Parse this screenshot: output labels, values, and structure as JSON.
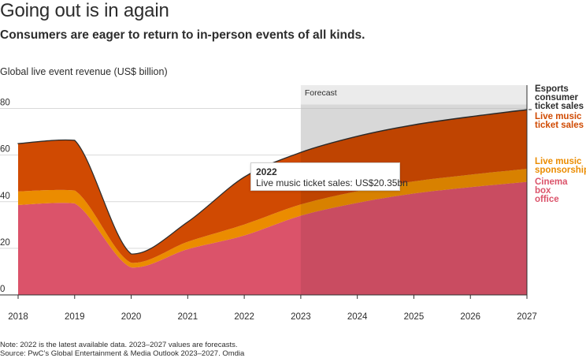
{
  "header": {
    "title": "Going out is in again",
    "subtitle": "Consumers are eager to return to in-person events of all kinds."
  },
  "footer": {
    "note": "Note: 2022 is the latest available data. 2023–2027 values are forecasts.",
    "source": "Source: PwC’s Global Entertainment & Media Outlook 2023–2027. Omdia"
  },
  "tooltip": {
    "year": "2022",
    "text": "Live music ticket sales: US$20.35bn"
  },
  "forecast_label": "Forecast",
  "legend": [
    {
      "lines": [
        "Esports",
        "consumer",
        "ticket sales"
      ],
      "color": "#2d2d2d"
    },
    {
      "lines": [
        "Live music",
        "ticket sales"
      ],
      "color": "#d04a02"
    },
    {
      "lines": [
        "Live music",
        "sponsorship"
      ],
      "color": "#eb8c00"
    },
    {
      "lines": [
        "Cinema box",
        "office"
      ],
      "color": "#db536a"
    }
  ],
  "chart_data": {
    "type": "area",
    "stacked": true,
    "ylabel": "Global live event revenue (US$ billion)",
    "xlabel": "",
    "x": [
      2018,
      2019,
      2020,
      2021,
      2022,
      2023,
      2024,
      2025,
      2026,
      2027
    ],
    "x_tick_labels": [
      "2018",
      "2019",
      "2020",
      "2021",
      "2022",
      "2023",
      "2024",
      "2025",
      "2026",
      "2027"
    ],
    "y_ticks": [
      0,
      20,
      40,
      60,
      80
    ],
    "ylim": [
      0,
      80
    ],
    "forecast_start": 2023,
    "grid": true,
    "series": [
      {
        "name": "Cinema box office",
        "color": "#db536a",
        "values": [
          38.6,
          39.3,
          11.8,
          19.6,
          25.5,
          34.0,
          39.5,
          43.5,
          46.2,
          48.5
        ]
      },
      {
        "name": "Live music sponsorship",
        "color": "#eb8c00",
        "values": [
          5.8,
          5.5,
          2.0,
          3.2,
          4.7,
          4.8,
          5.0,
          5.2,
          5.4,
          5.6
        ]
      },
      {
        "name": "Live music ticket sales",
        "color": "#d04a02",
        "values": [
          20.5,
          21.5,
          3.8,
          8.5,
          20.35,
          22.3,
          23.5,
          24.2,
          24.8,
          25.3
        ]
      },
      {
        "name": "Esports consumer ticket sales",
        "color": "#2d2d2d",
        "values": [
          0.05,
          0.05,
          0.01,
          0.02,
          0.05,
          0.07,
          0.08,
          0.09,
          0.1,
          0.11
        ]
      }
    ]
  }
}
